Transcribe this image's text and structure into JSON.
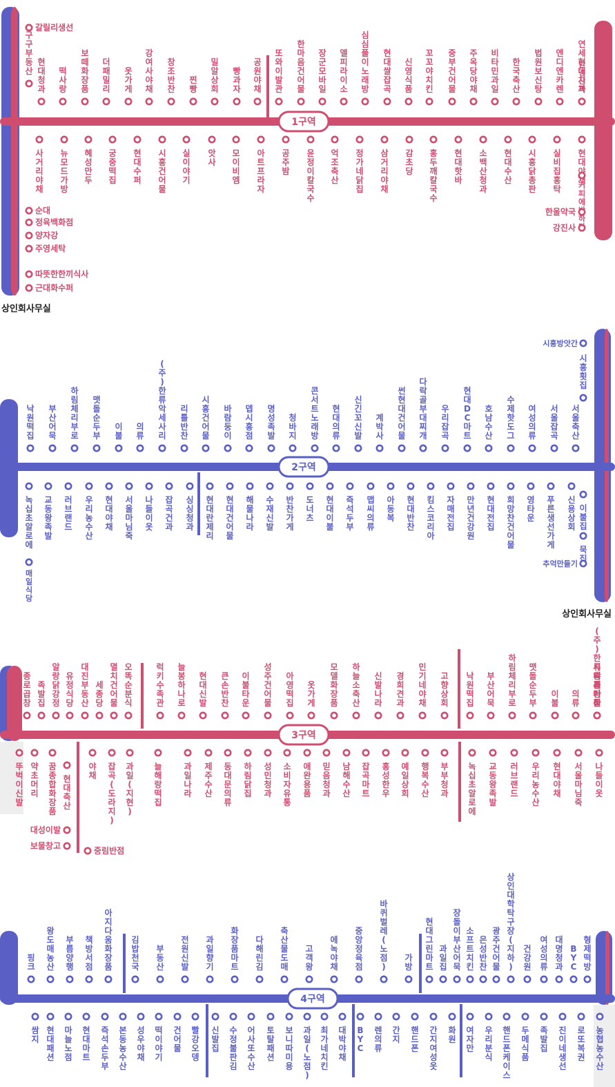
{
  "office_label": "상인회사무실",
  "colors": {
    "pink": "#cf4d6f",
    "blue": "#5a5fc5",
    "gray_bg": "#eeeeee"
  },
  "zones": [
    {
      "label": "1구역",
      "top": [
        {
          "name": "구구부동산"
        },
        {
          "name": "현대청과"
        },
        {
          "name": "떡사랑"
        },
        {
          "name": "보떼화장품"
        },
        {
          "name": "더패밀리"
        },
        {
          "name": "옷가게"
        },
        {
          "name": "강여사야채"
        },
        {
          "name": "창조반찬"
        },
        {
          "name": "찐빵"
        },
        {
          "name": "밀알상회"
        },
        {
          "name": "빵과자"
        },
        {
          "name": "공원야채"
        },
        {
          "name": "또와이발관"
        },
        {
          "name": "한마음건어물"
        },
        {
          "name": "장군모바일"
        },
        {
          "name": "엘피라이소"
        },
        {
          "name": "심심풀이노래방"
        },
        {
          "name": "현대쌀잡곡"
        },
        {
          "name": "신영식품"
        },
        {
          "name": "꼬꼬야치킨"
        },
        {
          "name": "중부건어물"
        },
        {
          "name": "주옥당야채"
        },
        {
          "name": "비타민과일"
        },
        {
          "name": "한국축산"
        },
        {
          "name": "법원보신탕"
        },
        {
          "name": "엔디엔카렌"
        },
        {
          "name": "연세현대치과"
        },
        {
          "name": "안경산책"
        }
      ],
      "bottom": [
        {
          "name": "사거리야채"
        },
        {
          "name": "뉴모드가방"
        },
        {
          "name": "혜성만두"
        },
        {
          "name": "궁중떡집"
        },
        {
          "name": "현대수퍼"
        },
        {
          "name": "시흥건어물"
        },
        {
          "name": "실이야기"
        },
        {
          "name": "앗사"
        },
        {
          "name": "모이비엠"
        },
        {
          "name": "아트프라자"
        },
        {
          "name": "공주밤"
        },
        {
          "name": "윤정이칼국수"
        },
        {
          "name": "억조축산"
        },
        {
          "name": "정가네닭집"
        },
        {
          "name": "삼거리야채"
        },
        {
          "name": "감초당"
        },
        {
          "name": "홍두깨칼국수"
        },
        {
          "name": "현대핫바"
        },
        {
          "name": "소백산청과"
        },
        {
          "name": "현대수산"
        },
        {
          "name": "시흥닭총판"
        },
        {
          "name": "실비집홍탁"
        },
        {
          "name": "현대야채"
        },
        {
          "name": "커피에반하다"
        },
        {
          "name": "한울약국"
        },
        {
          "name": "강진사"
        },
        {
          "name": "갈릴리생선"
        },
        {
          "name": "순대"
        },
        {
          "name": "정육백화점"
        },
        {
          "name": "양자강"
        },
        {
          "name": "주영세탁"
        },
        {
          "name": "따뜻한한끼식사"
        },
        {
          "name": "근대화수퍼"
        }
      ]
    },
    {
      "label": "2구역",
      "top": [
        {
          "name": "낙원떡집"
        },
        {
          "name": "부산어묵"
        },
        {
          "name": "하림체리부로"
        },
        {
          "name": "맷돌순두부"
        },
        {
          "name": "이불"
        },
        {
          "name": "의류"
        },
        {
          "name": "(주)한류악세사리"
        },
        {
          "name": "리틀반찬"
        },
        {
          "name": "시흥건어물"
        },
        {
          "name": "바람둥이"
        },
        {
          "name": "뎁시흥점"
        },
        {
          "name": "명성족발"
        },
        {
          "name": "청바지"
        },
        {
          "name": "콘서트노래방"
        },
        {
          "name": "현대의류"
        },
        {
          "name": "신긴꼬신발"
        },
        {
          "name": "계박사"
        },
        {
          "name": "썬현대건어물"
        },
        {
          "name": "다락골부대찌개"
        },
        {
          "name": "우리잡곡"
        },
        {
          "name": "현대DC마트"
        },
        {
          "name": "호남수산"
        },
        {
          "name": "수제핫도그"
        },
        {
          "name": "여성의류"
        },
        {
          "name": "서울잡곡"
        },
        {
          "name": "서울축산"
        },
        {
          "name": "시흥방앗간"
        },
        {
          "name": "시흥횟집"
        }
      ],
      "bottom": [
        {
          "name": "녹십초알로에"
        },
        {
          "name": "교동왕족발"
        },
        {
          "name": "러브랜드"
        },
        {
          "name": "우리농수산"
        },
        {
          "name": "현대야채"
        },
        {
          "name": "서울마님죽"
        },
        {
          "name": "나들이옷"
        },
        {
          "name": "잡곡건과"
        },
        {
          "name": "싱싱청과"
        },
        {
          "name": "현대란제리"
        },
        {
          "name": "현대건어물"
        },
        {
          "name": "해물나라"
        },
        {
          "name": "수재신발"
        },
        {
          "name": "반찬가게"
        },
        {
          "name": "도너츠"
        },
        {
          "name": "현대이불"
        },
        {
          "name": "즉석두부"
        },
        {
          "name": "맵씨의류"
        },
        {
          "name": "아동복"
        },
        {
          "name": "현대반찬"
        },
        {
          "name": "킴스코리아"
        },
        {
          "name": "자매전집"
        },
        {
          "name": "만년건강원"
        },
        {
          "name": "현대전집"
        },
        {
          "name": "희망찬건어물"
        },
        {
          "name": "영타운"
        },
        {
          "name": "푸른생선가게"
        },
        {
          "name": "신용상회"
        },
        {
          "name": "이불집"
        },
        {
          "name": "묵집"
        },
        {
          "name": "추억만들기"
        },
        {
          "name": "매일식당"
        }
      ]
    },
    {
      "label": "3구역",
      "top": [
        {
          "name": "종로곱창"
        },
        {
          "name": "족발집"
        },
        {
          "name": "알랑닭강정"
        },
        {
          "name": "유정식당"
        },
        {
          "name": "대진부동산"
        },
        {
          "name": "세종당"
        },
        {
          "name": "멸치건어물"
        },
        {
          "name": "오똑순분식"
        },
        {
          "name": "럭키수족관"
        },
        {
          "name": "늘봉하나로"
        },
        {
          "name": "현대신발"
        },
        {
          "name": "큰손반찬"
        },
        {
          "name": "이불타운"
        },
        {
          "name": "성주건어물"
        },
        {
          "name": "아영떡집"
        },
        {
          "name": "옷가게"
        },
        {
          "name": "모델화장품"
        },
        {
          "name": "하늘소축산"
        },
        {
          "name": "신발나라"
        },
        {
          "name": "경희견과"
        },
        {
          "name": "민기네야채"
        },
        {
          "name": "고향상회"
        },
        {
          "name": "낙원떡집"
        },
        {
          "name": "부산어묵"
        },
        {
          "name": "하림체리부로"
        },
        {
          "name": "맷돌순두부"
        },
        {
          "name": "이불"
        },
        {
          "name": "의류"
        },
        {
          "name": "(주)한류악세사리"
        },
        {
          "name": "리틀반찬"
        },
        {
          "name": "시흥건어물"
        }
      ],
      "bottom": [
        {
          "name": "뚜벅이신발"
        },
        {
          "name": "약초머리"
        },
        {
          "name": "꿈종합화장품"
        },
        {
          "name": "현대축산"
        },
        {
          "name": "야채"
        },
        {
          "name": "잡곡(도라지)"
        },
        {
          "name": "과일(지현)"
        },
        {
          "name": "늘해랑떡집"
        },
        {
          "name": "과일나라"
        },
        {
          "name": "제주수산"
        },
        {
          "name": "동대문의류"
        },
        {
          "name": "하림닭집"
        },
        {
          "name": "성민청과"
        },
        {
          "name": "소비자유통"
        },
        {
          "name": "애완용품"
        },
        {
          "name": "믿음청과"
        },
        {
          "name": "남해수산"
        },
        {
          "name": "잡곡마트"
        },
        {
          "name": "홍성한우"
        },
        {
          "name": "예일상회"
        },
        {
          "name": "행복수산"
        },
        {
          "name": "부부청과"
        },
        {
          "name": "녹십초알로에"
        },
        {
          "name": "교동왕족발"
        },
        {
          "name": "러브랜드"
        },
        {
          "name": "우리농수산"
        },
        {
          "name": "현대야채"
        },
        {
          "name": "서울마님죽"
        },
        {
          "name": "나들이옷"
        },
        {
          "name": "대성이발"
        },
        {
          "name": "보물창고"
        },
        {
          "name": "중림반점"
        }
      ]
    },
    {
      "label": "4구역",
      "top": [
        {
          "name": "핑크"
        },
        {
          "name": "왕도매농산"
        },
        {
          "name": "부름양행"
        },
        {
          "name": "책방서점"
        },
        {
          "name": "아지다움화장품"
        },
        {
          "name": "김밥천국"
        },
        {
          "name": "부동산"
        },
        {
          "name": "전원신발"
        },
        {
          "name": "과일향기"
        },
        {
          "name": "화장품마트"
        },
        {
          "name": "다해린김"
        },
        {
          "name": "축산물도매"
        },
        {
          "name": "고객왕"
        },
        {
          "name": "에녹야채"
        },
        {
          "name": "중앙정육점"
        },
        {
          "name": "바퀴벌레(노점)"
        },
        {
          "name": "가방"
        },
        {
          "name": "현대그린마트"
        },
        {
          "name": "과일집"
        },
        {
          "name": "장돌이부산어묵"
        },
        {
          "name": "소프트치킨"
        },
        {
          "name": "은성반찬"
        },
        {
          "name": "광주건어물"
        },
        {
          "name": "상인대학탁구장(지하)"
        },
        {
          "name": "건강원"
        },
        {
          "name": "여성의류"
        },
        {
          "name": "대명청과"
        },
        {
          "name": "BYC"
        },
        {
          "name": "형제떡방"
        }
      ],
      "bottom": [
        {
          "name": "쌈지"
        },
        {
          "name": "현대패션"
        },
        {
          "name": "마늘노점"
        },
        {
          "name": "현대마트"
        },
        {
          "name": "즉석손두부"
        },
        {
          "name": "본동농수산"
        },
        {
          "name": "성우야채"
        },
        {
          "name": "떡이야기"
        },
        {
          "name": "건어물"
        },
        {
          "name": "빨강오뎅"
        },
        {
          "name": "신발집"
        },
        {
          "name": "수정불판김"
        },
        {
          "name": "어사또수산"
        },
        {
          "name": "토탈패션"
        },
        {
          "name": "보니따미용"
        },
        {
          "name": "과일(노점)"
        },
        {
          "name": "최가네치킨"
        },
        {
          "name": "대박야채"
        },
        {
          "name": "BYC"
        },
        {
          "name": "렌의류"
        },
        {
          "name": "간지"
        },
        {
          "name": "핸드폰"
        },
        {
          "name": "간지여성옷"
        },
        {
          "name": "화원"
        },
        {
          "name": "여자만"
        },
        {
          "name": "우리분식"
        },
        {
          "name": "핸드폰케이스"
        },
        {
          "name": "두메식품"
        },
        {
          "name": "족발집"
        },
        {
          "name": "진이네생선"
        },
        {
          "name": "로또복권"
        },
        {
          "name": "농협농수산"
        }
      ]
    }
  ]
}
